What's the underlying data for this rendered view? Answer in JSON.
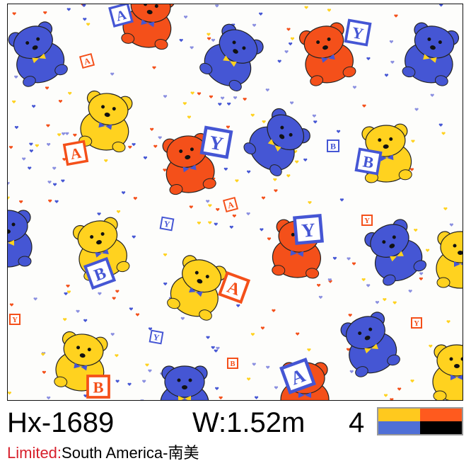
{
  "product": {
    "code": "Hx-1689",
    "width": "W:1.52m",
    "color_count": "4",
    "colors": [
      "#ffc91e",
      "#ff5a1e",
      "#4f6fd6",
      "#000000"
    ],
    "limited_label": "Limited:",
    "limited_value": "South America-南美"
  },
  "pattern": {
    "motifs": "teddy-bears-with-letter-blocks",
    "block_letters": [
      "A",
      "B",
      "Y"
    ],
    "palette": {
      "yellow": "#ffd21f",
      "red": "#f4501a",
      "blue": "#4556d4",
      "background": "#fdfdfb"
    }
  }
}
